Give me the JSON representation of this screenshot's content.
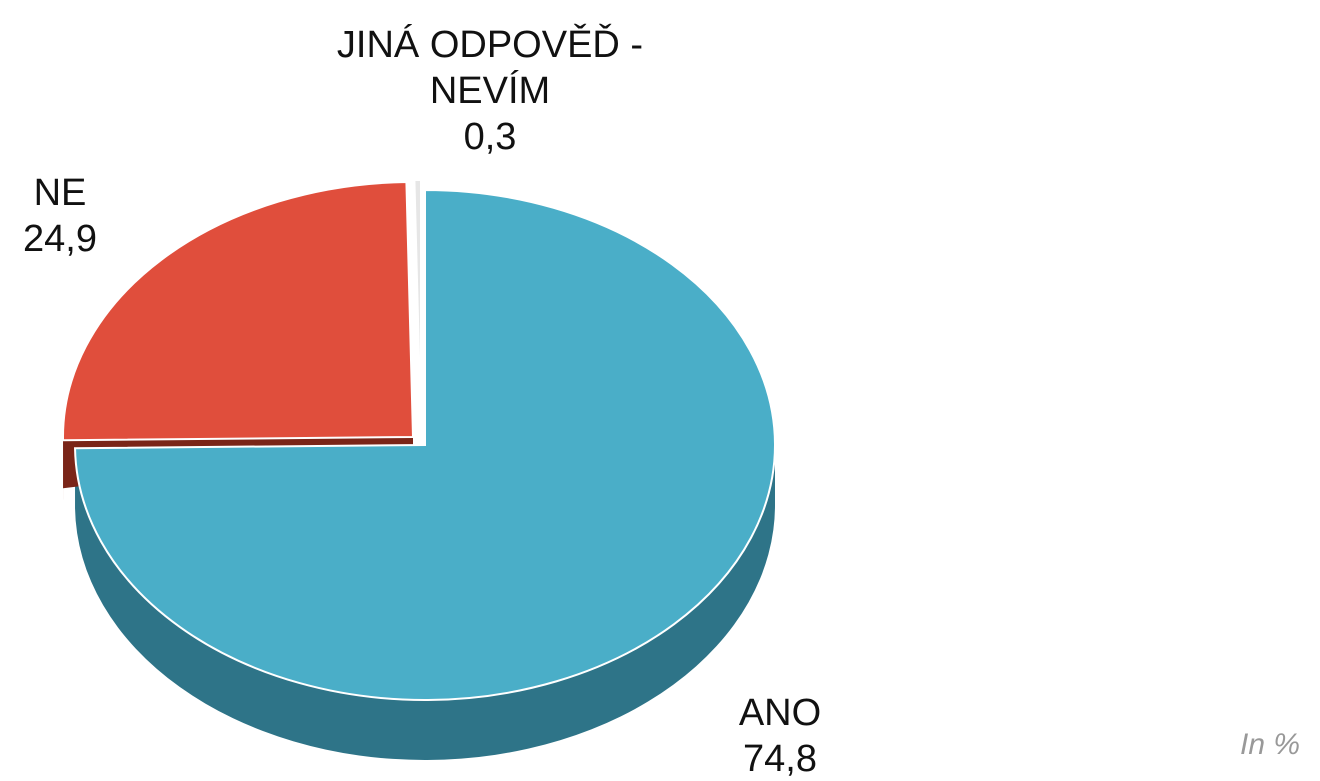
{
  "chart_data": {
    "type": "pie",
    "categories": [
      "ANO",
      "NE",
      "JINÁ ODPOVĚĎ - NEVÍM"
    ],
    "values": [
      74.8,
      24.9,
      0.3
    ],
    "value_labels": [
      "74,8",
      "24,9",
      "0,3"
    ],
    "colors": [
      "#4aaec8",
      "#e04e3c",
      "#e6e6e6"
    ],
    "annotation": "In %"
  }
}
